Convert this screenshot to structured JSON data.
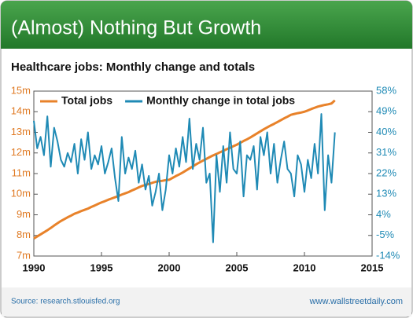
{
  "header": {
    "title": "(Almost) Nothing But Growth"
  },
  "footer": {
    "source": "Source: research.stlouisfed.org",
    "site": "www.wallstreetdaily.com"
  },
  "chart_data": {
    "type": "line",
    "title": "Healthcare jobs: Monthly change and totals",
    "x": [
      1990,
      1990.25,
      1990.5,
      1990.75,
      1991,
      1991.25,
      1991.5,
      1991.75,
      1992,
      1992.25,
      1992.5,
      1992.75,
      1993,
      1993.25,
      1993.5,
      1993.75,
      1994,
      1994.25,
      1994.5,
      1994.75,
      1995,
      1995.25,
      1995.5,
      1995.75,
      1996,
      1996.25,
      1996.5,
      1996.75,
      1997,
      1997.25,
      1997.5,
      1997.75,
      1998,
      1998.25,
      1998.5,
      1998.75,
      1999,
      1999.25,
      1999.5,
      1999.75,
      2000,
      2000.25,
      2000.5,
      2000.75,
      2001,
      2001.25,
      2001.5,
      2001.75,
      2002,
      2002.25,
      2002.5,
      2002.75,
      2003,
      2003.25,
      2003.5,
      2003.75,
      2004,
      2004.25,
      2004.5,
      2004.75,
      2005,
      2005.25,
      2005.5,
      2005.75,
      2006,
      2006.25,
      2006.5,
      2006.75,
      2007,
      2007.25,
      2007.5,
      2007.75,
      2008,
      2008.25,
      2008.5,
      2008.75,
      2009,
      2009.25,
      2009.5,
      2009.75,
      2010,
      2010.25,
      2010.5,
      2010.75,
      2011,
      2011.25,
      2011.5,
      2011.75,
      2012,
      2012.25
    ],
    "series": [
      {
        "name": "Total jobs",
        "color": "#e8822a",
        "axis": "y",
        "values": [
          7.85,
          7.95,
          8.05,
          8.15,
          8.25,
          8.36,
          8.48,
          8.59,
          8.7,
          8.79,
          8.88,
          8.96,
          9.05,
          9.11,
          9.18,
          9.24,
          9.3,
          9.38,
          9.45,
          9.53,
          9.6,
          9.66,
          9.73,
          9.79,
          9.85,
          9.91,
          9.98,
          10.04,
          10.1,
          10.18,
          10.25,
          10.33,
          10.4,
          10.45,
          10.5,
          10.55,
          10.6,
          10.63,
          10.65,
          10.68,
          10.7,
          10.79,
          10.88,
          10.96,
          11.05,
          11.15,
          11.25,
          11.35,
          11.45,
          11.54,
          11.63,
          11.71,
          11.8,
          11.88,
          11.95,
          12.03,
          12.1,
          12.18,
          12.25,
          12.33,
          12.4,
          12.49,
          12.58,
          12.66,
          12.75,
          12.85,
          12.95,
          13.05,
          13.15,
          13.24,
          13.33,
          13.41,
          13.5,
          13.59,
          13.68,
          13.76,
          13.85,
          13.89,
          13.93,
          13.96,
          14.0,
          14.06,
          14.13,
          14.19,
          14.25,
          14.29,
          14.33,
          14.36,
          14.4,
          14.55
        ]
      },
      {
        "name": "Monthly change in total jobs",
        "color": "#1f8ab5",
        "axis": "y2",
        "values": [
          45,
          33,
          38,
          30,
          47,
          25,
          42,
          36,
          28,
          25,
          31,
          27,
          35,
          22,
          37,
          28,
          40,
          24,
          30,
          26,
          34,
          22,
          27,
          33,
          20,
          10,
          38,
          22,
          29,
          24,
          32,
          18,
          26,
          15,
          21,
          8,
          14,
          22,
          6,
          15,
          30,
          22,
          33,
          25,
          38,
          27,
          46,
          24,
          35,
          28,
          42,
          18,
          22,
          -8,
          30,
          14,
          34,
          18,
          40,
          24,
          22,
          36,
          12,
          30,
          28,
          34,
          15,
          38,
          30,
          40,
          22,
          35,
          18,
          28,
          36,
          24,
          22,
          12,
          30,
          26,
          14,
          28,
          20,
          35,
          22,
          48,
          6,
          30,
          18,
          40
        ]
      }
    ],
    "xlim": [
      1990,
      2015
    ],
    "xticks": [
      1990,
      1995,
      2000,
      2005,
      2010,
      2015
    ],
    "ylim": [
      7,
      15
    ],
    "yticks": [
      {
        "value": 7,
        "label": "7m"
      },
      {
        "value": 8,
        "label": "8m"
      },
      {
        "value": 9,
        "label": "9m"
      },
      {
        "value": 10,
        "label": "10m"
      },
      {
        "value": 11,
        "label": "11m"
      },
      {
        "value": 12,
        "label": "12m"
      },
      {
        "value": 13,
        "label": "13m"
      },
      {
        "value": 14,
        "label": "14m"
      },
      {
        "value": 15,
        "label": "15m"
      }
    ],
    "y2lim": [
      -14,
      58
    ],
    "y2ticks": [
      {
        "value": -14,
        "label": "-14%"
      },
      {
        "value": -5,
        "label": "-5%"
      },
      {
        "value": 4,
        "label": "4%"
      },
      {
        "value": 13,
        "label": "13%"
      },
      {
        "value": 22,
        "label": "22%"
      },
      {
        "value": 31,
        "label": "31%"
      },
      {
        "value": 40,
        "label": "40%"
      },
      {
        "value": 49,
        "label": "49%"
      },
      {
        "value": 58,
        "label": "58%"
      }
    ],
    "legend": "upper-left"
  }
}
